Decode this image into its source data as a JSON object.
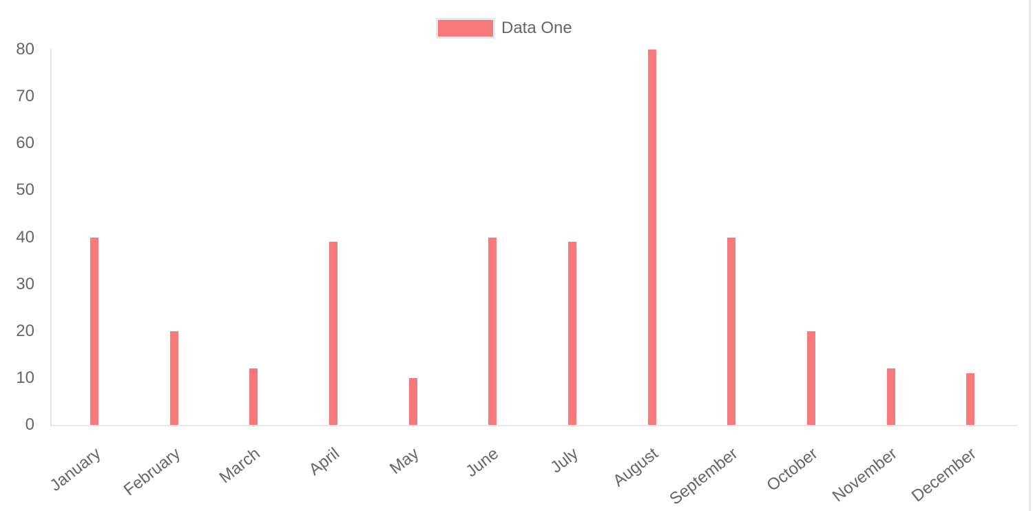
{
  "chart_data": {
    "type": "bar",
    "title": "",
    "xlabel": "",
    "ylabel": "",
    "categories": [
      "January",
      "February",
      "March",
      "April",
      "May",
      "June",
      "July",
      "August",
      "September",
      "October",
      "November",
      "December"
    ],
    "series": [
      {
        "name": "Data One",
        "color": "#f87979",
        "values": [
          40,
          20,
          12,
          39,
          10,
          40,
          39,
          80,
          40,
          20,
          12,
          11
        ]
      }
    ],
    "yticks": [
      0,
      10,
      20,
      30,
      40,
      50,
      60,
      70,
      80
    ],
    "ylim": [
      0,
      80
    ],
    "grid": "off",
    "axis_border_color": "#e6e6e6",
    "tick_text_color": "#666666",
    "legend_position": "top",
    "legend_swatch_border_color": "#e9e9e9",
    "x_label_rotation_deg": -38
  }
}
